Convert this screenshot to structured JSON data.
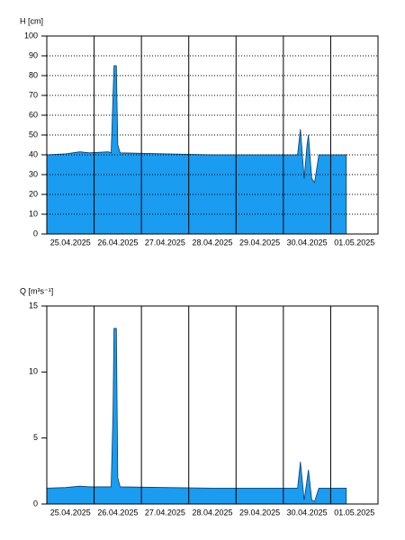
{
  "chart_data": [
    {
      "type": "area",
      "ylabel": "H [cm]",
      "color": "#1a9cf0",
      "grid": true,
      "xlim": [
        0,
        7
      ],
      "xticks": [
        {
          "value": 0.5,
          "label": "25.04.2025"
        },
        {
          "value": 1.5,
          "label": "26.04.2025"
        },
        {
          "value": 2.5,
          "label": "27.04.2025"
        },
        {
          "value": 3.5,
          "label": "28.04.2025"
        },
        {
          "value": 4.5,
          "label": "29.04.2025"
        },
        {
          "value": 5.5,
          "label": "30.04.2025"
        },
        {
          "value": 6.5,
          "label": "01.05.2025"
        }
      ],
      "xgrid": [
        1,
        2,
        3,
        4,
        5,
        6
      ],
      "ylim": [
        0,
        100
      ],
      "yticks": [
        0,
        10,
        20,
        30,
        40,
        50,
        60,
        70,
        80,
        90,
        100
      ],
      "x": [
        0,
        0.4,
        0.7,
        0.9,
        1.3,
        1.36,
        1.4,
        1.42,
        1.47,
        1.5,
        1.55,
        2.5,
        3.5,
        4.5,
        5.3,
        5.36,
        5.44,
        5.5,
        5.53,
        5.6,
        5.66,
        5.75,
        6.33
      ],
      "series": [
        {
          "name": "H",
          "values": [
            40,
            40.5,
            41.5,
            41,
            41.5,
            41,
            70,
            85,
            85,
            45,
            41,
            40.5,
            40,
            40,
            40,
            53,
            28,
            45,
            50,
            28,
            26,
            40,
            40
          ]
        }
      ]
    },
    {
      "type": "area",
      "ylabel": "Q [m³s⁻¹]",
      "color": "#1a9cf0",
      "grid": false,
      "xlim": [
        0,
        7
      ],
      "xticks": [
        {
          "value": 0.5,
          "label": "25.04.2025"
        },
        {
          "value": 1.5,
          "label": "26.04.2025"
        },
        {
          "value": 2.5,
          "label": "27.04.2025"
        },
        {
          "value": 3.5,
          "label": "28.04.2025"
        },
        {
          "value": 4.5,
          "label": "29.04.2025"
        },
        {
          "value": 5.5,
          "label": "30.04.2025"
        },
        {
          "value": 6.5,
          "label": "01.05.2025"
        }
      ],
      "xgrid": [
        1,
        2,
        3,
        4,
        5,
        6
      ],
      "ylim": [
        0,
        15
      ],
      "yticks": [
        0,
        5,
        10,
        15
      ],
      "x": [
        0,
        0.4,
        0.7,
        0.9,
        1.3,
        1.36,
        1.4,
        1.42,
        1.47,
        1.5,
        1.55,
        2.5,
        3.5,
        4.5,
        5.3,
        5.36,
        5.44,
        5.5,
        5.53,
        5.6,
        5.66,
        5.75,
        6.33
      ],
      "series": [
        {
          "name": "Q",
          "values": [
            1.2,
            1.25,
            1.35,
            1.3,
            1.3,
            1.3,
            7,
            13.3,
            13.3,
            2,
            1.3,
            1.25,
            1.2,
            1.2,
            1.2,
            3.2,
            0.3,
            1.8,
            2.6,
            0.3,
            0.2,
            1.2,
            1.2
          ]
        }
      ]
    }
  ]
}
